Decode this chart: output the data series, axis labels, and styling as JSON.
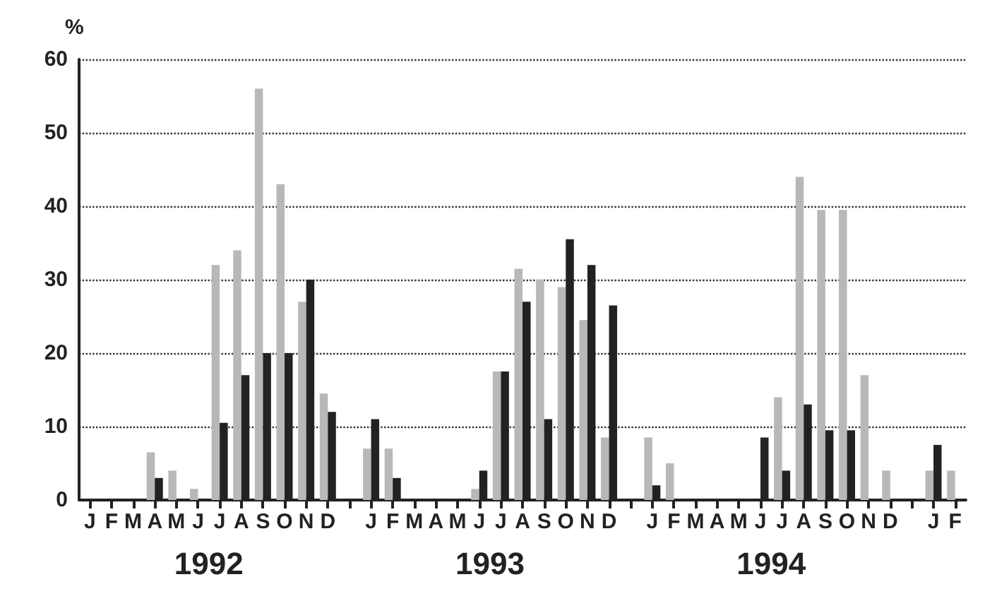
{
  "chart_data": {
    "type": "bar",
    "ylabel": "%",
    "categories": [
      "J",
      "F",
      "M",
      "A",
      "M",
      "J",
      "J",
      "A",
      "S",
      "O",
      "N",
      "D",
      null,
      "J",
      "F",
      "M",
      "A",
      "M",
      "J",
      "J",
      "A",
      "S",
      "O",
      "N",
      "D",
      null,
      "J",
      "F",
      "M",
      "A",
      "M",
      "J",
      "J",
      "A",
      "S",
      "O",
      "N",
      "D",
      null,
      "J",
      "F"
    ],
    "series": [
      {
        "color": "#b8b8b8",
        "values": [
          0,
          0,
          0,
          6.5,
          4,
          1.5,
          32,
          34,
          56,
          43,
          27,
          14.5,
          0,
          7,
          7,
          0,
          0,
          0,
          1.5,
          17.5,
          31.5,
          30,
          29,
          24.5,
          8.5,
          0,
          8.5,
          5,
          0,
          0,
          0,
          0,
          14,
          44,
          39.5,
          39.5,
          17,
          4,
          0,
          4,
          4
        ]
      },
      {
        "color": "#222222",
        "values": [
          0,
          0,
          0,
          3,
          0,
          0,
          10.5,
          17,
          20,
          20,
          30,
          12,
          0,
          11,
          3,
          0,
          0,
          0,
          4,
          17.5,
          27,
          11,
          35.5,
          32,
          26.5,
          0,
          2,
          0,
          0,
          0,
          0,
          8.5,
          4,
          13,
          9.5,
          9.5,
          0,
          0,
          0,
          7.5,
          0
        ]
      }
    ],
    "annotations": [
      "1992",
      "1993",
      "1994"
    ],
    "ylim": [
      0,
      60
    ],
    "yticks": [
      0,
      10,
      20,
      30,
      40,
      50,
      60
    ],
    "grid": "y"
  }
}
